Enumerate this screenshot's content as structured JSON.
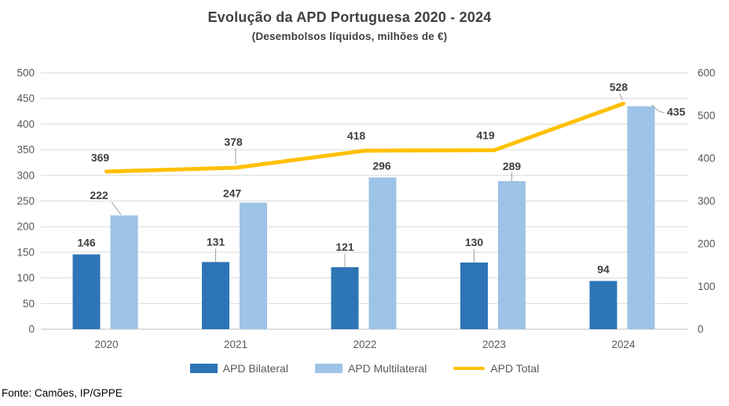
{
  "header": {
    "title": "Evolução da APD Portuguesa 2020 - 2024",
    "subtitle": "(Desembolsos líquidos, milhões de €)"
  },
  "footer": {
    "source": "Fonte: Camões, IP/GPPE"
  },
  "legend": {
    "items": [
      {
        "label": "APD Bilateral",
        "color": "#2E75B6",
        "marker": "rect"
      },
      {
        "label": "APD Multilateral",
        "color": "#9DC3E6",
        "marker": "rect"
      },
      {
        "label": "APD Total",
        "color": "#FFC000",
        "marker": "line"
      }
    ]
  },
  "chart_data": {
    "type": "bar+line",
    "title": "Evolução da APD Portuguesa 2020 - 2024",
    "subtitle": "(Desembolsos líquidos, milhões de €)",
    "categories": [
      "2020",
      "2021",
      "2022",
      "2023",
      "2024"
    ],
    "series": [
      {
        "name": "APD Bilateral",
        "type": "bar",
        "axis": "left",
        "color": "#2E75B6",
        "values": [
          146,
          131,
          121,
          130,
          94
        ]
      },
      {
        "name": "APD Multilateral",
        "type": "bar",
        "axis": "left",
        "color": "#9DC3E6",
        "values": [
          222,
          247,
          296,
          289,
          435
        ]
      },
      {
        "name": "APD Total",
        "type": "line",
        "axis": "right",
        "color": "#FFC000",
        "values": [
          369,
          378,
          418,
          419,
          528
        ]
      }
    ],
    "left_axis": {
      "min": 0,
      "max": 500,
      "step": 50,
      "ticks": [
        0,
        50,
        100,
        150,
        200,
        250,
        300,
        350,
        400,
        450,
        500
      ]
    },
    "right_axis": {
      "min": 0,
      "max": 600,
      "step": 100,
      "ticks": [
        0,
        100,
        200,
        300,
        400,
        500,
        600
      ]
    },
    "grid": true,
    "legend_position": "bottom",
    "colors": {
      "grid": "#D9D9D9",
      "axis_line": "#BFBFBF",
      "tick_label": "#595959",
      "data_label": "#3F3F3F",
      "leader_line": "#A0A0A0"
    }
  }
}
